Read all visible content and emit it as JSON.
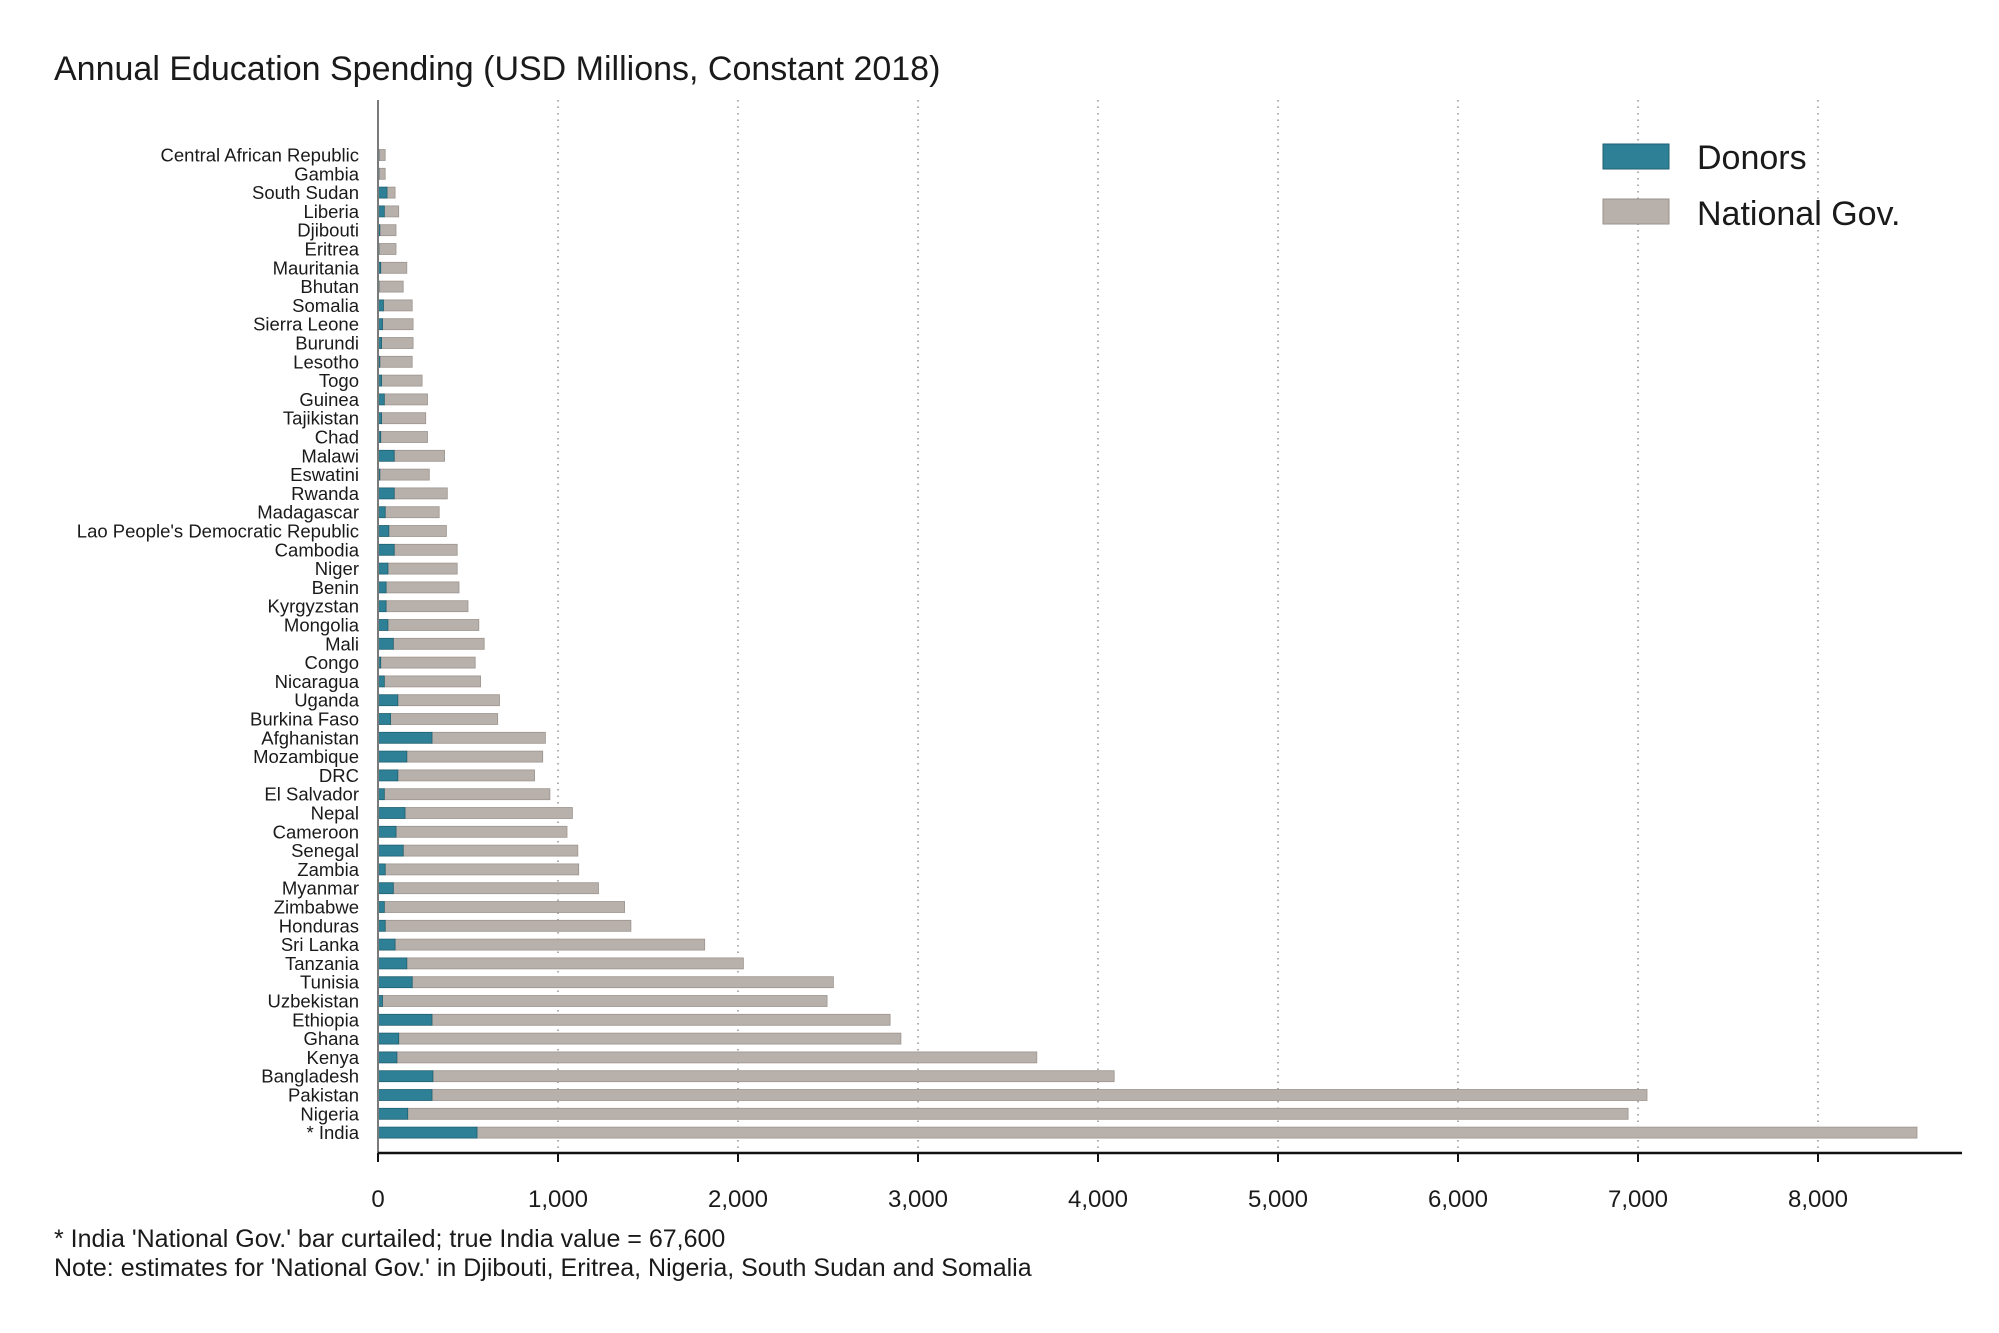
{
  "chart_data": {
    "type": "bar",
    "orientation": "horizontal",
    "stacked": true,
    "title": "Annual Education Spending (USD Millions, Constant 2018)",
    "xlabel": "",
    "ylabel": "",
    "xlim": [
      0,
      8800
    ],
    "xticks": [
      0,
      1000,
      2000,
      3000,
      4000,
      5000,
      6000,
      7000,
      8000
    ],
    "xtick_labels": [
      "0",
      "1,000",
      "2,000",
      "3,000",
      "4,000",
      "5,000",
      "6,000",
      "7,000",
      "8,000"
    ],
    "grid": "vertical dotted",
    "legend_position": "top-right",
    "colors": {
      "Donors": "#2e8096",
      "National Gov.": "#b8b0aa"
    },
    "categories": [
      "Central African Republic",
      "Gambia",
      "South Sudan",
      "Liberia",
      "Djibouti",
      "Eritrea",
      "Mauritania",
      "Bhutan",
      "Somalia",
      "Sierra Leone",
      "Burundi",
      "Lesotho",
      "Togo",
      "Guinea",
      "Tajikistan",
      "Chad",
      "Malawi",
      "Eswatini",
      "Rwanda",
      "Madagascar",
      "Lao People's Democratic Republic",
      "Cambodia",
      "Niger",
      "Benin",
      "Kyrgyzstan",
      "Mongolia",
      "Mali",
      "Congo",
      "Nicaragua",
      "Uganda",
      "Burkina Faso",
      "Afghanistan",
      "Mozambique",
      "DRC",
      "El Salvador",
      "Nepal",
      "Cameroon",
      "Senegal",
      "Zambia",
      "Myanmar",
      "Zimbabwe",
      "Honduras",
      "Sri Lanka",
      "Tanzania",
      "Tunisia",
      "Uzbekistan",
      "Ethiopia",
      "Ghana",
      "Kenya",
      "Bangladesh",
      "Pakistan",
      "Nigeria",
      "* India"
    ],
    "series": [
      {
        "name": "Donors",
        "values": [
          5,
          5,
          50,
          35,
          10,
          5,
          15,
          5,
          30,
          25,
          20,
          10,
          20,
          35,
          20,
          15,
          90,
          10,
          90,
          40,
          60,
          90,
          55,
          45,
          45,
          55,
          85,
          15,
          35,
          110,
          70,
          300,
          160,
          110,
          35,
          150,
          100,
          140,
          40,
          85,
          35,
          40,
          95,
          160,
          190,
          25,
          300,
          115,
          105,
          305,
          300,
          165,
          550
        ]
      },
      {
        "name": "National Gov.",
        "values": [
          35,
          35,
          45,
          80,
          90,
          95,
          145,
          135,
          160,
          170,
          175,
          180,
          225,
          240,
          245,
          260,
          280,
          275,
          295,
          300,
          320,
          350,
          385,
          405,
          455,
          505,
          505,
          525,
          535,
          565,
          595,
          630,
          755,
          760,
          920,
          930,
          950,
          970,
          1075,
          1140,
          1335,
          1365,
          1720,
          1870,
          2340,
          2470,
          2545,
          2790,
          3555,
          3785,
          6750,
          6780,
          8000
        ]
      }
    ]
  },
  "legend": {
    "donors_label": "Donors",
    "national_label": "National Gov."
  },
  "footnotes": {
    "india_note": "* India 'National Gov.' bar curtailed; true India value = 67,600",
    "estimates_note": "Note: estimates for 'National Gov.' in Djibouti, Eritrea, Nigeria, South Sudan and Somalia"
  }
}
